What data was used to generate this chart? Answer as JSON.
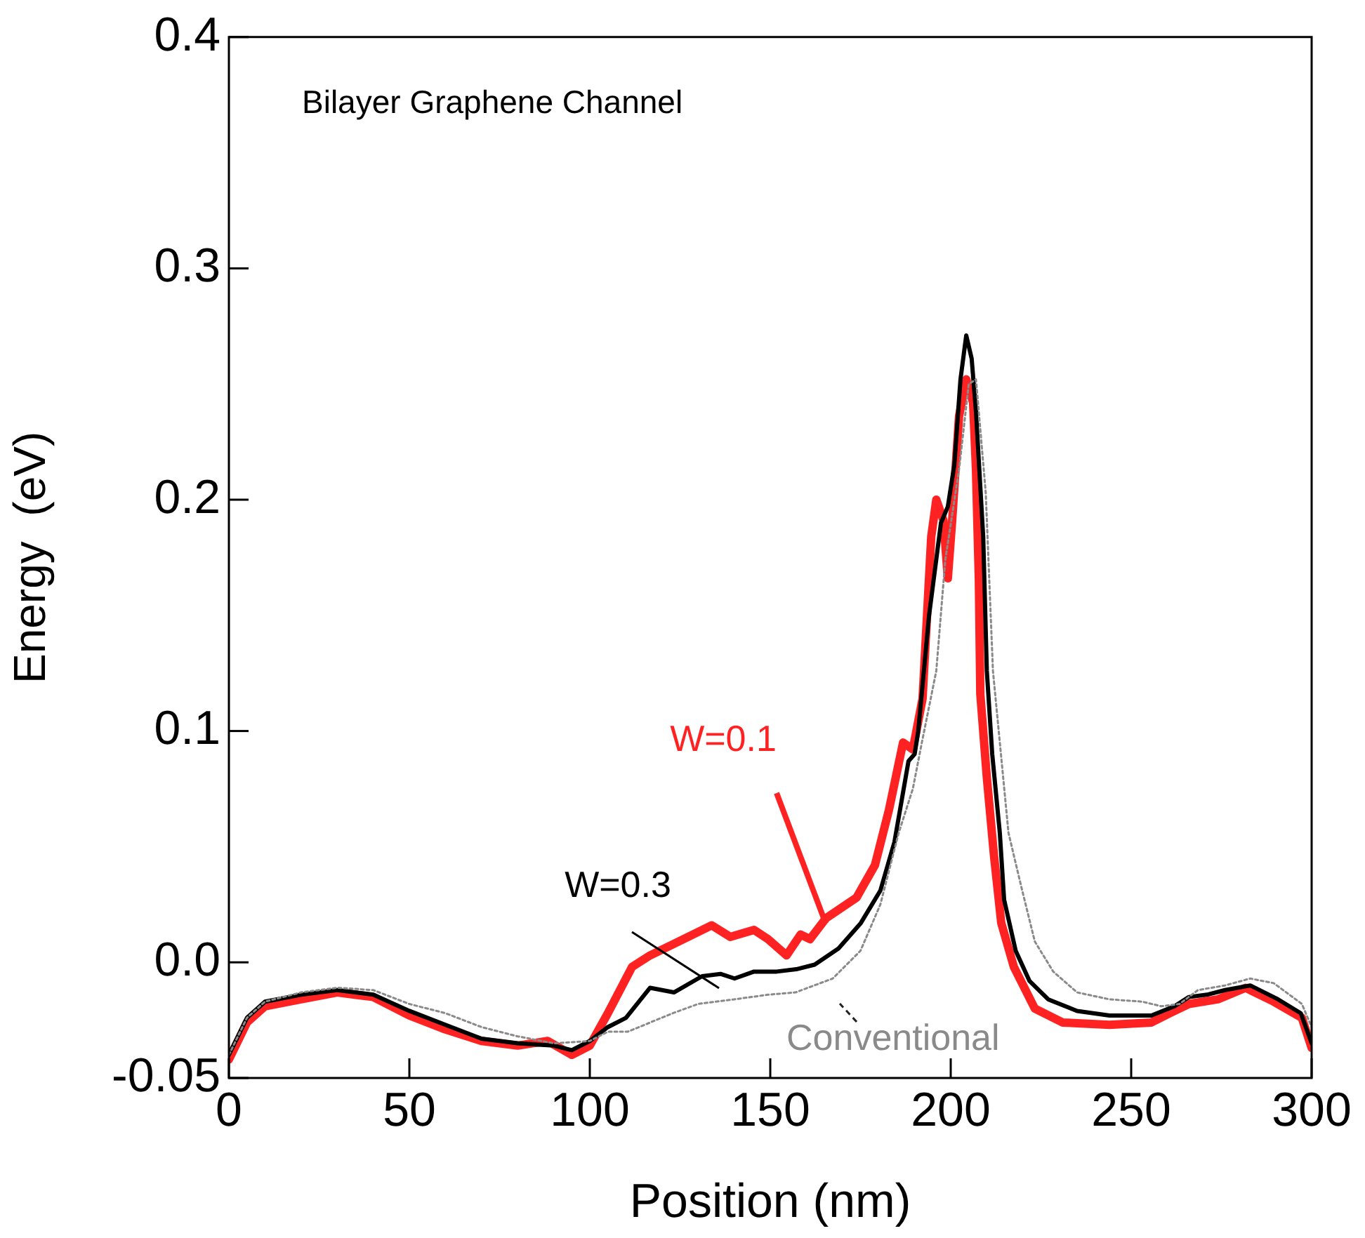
{
  "chart_data": {
    "type": "line",
    "title": "Bilayer Graphene Channel",
    "xlabel": "Position (nm)",
    "ylabel": "Energy  (eV)",
    "xlim": [
      0,
      300
    ],
    "xticks": [
      0,
      50,
      100,
      150,
      200,
      250,
      300
    ],
    "ylim": [
      -0.05,
      0.4
    ],
    "yticks": [
      -0.05,
      {
        "value": 0,
        "label": "0.0"
      },
      0.1,
      0.2,
      0.3,
      0.4
    ],
    "grid": false,
    "legend": false,
    "marker": "none",
    "series": [
      {
        "name": "Conventional",
        "color": "#8a8a8a",
        "line_style": "dotted",
        "x": [
          0,
          5,
          10,
          20,
          30,
          40,
          50,
          60,
          70,
          80,
          90,
          100,
          105,
          110.5,
          123,
          130,
          140,
          149.4,
          157,
          167.3,
          175,
          180.5,
          185.6,
          189.5,
          192,
          196,
          198.5,
          202.3,
          205,
          207,
          209.7,
          211.7,
          216,
          219.5,
          223.3,
          228.4,
          235,
          244,
          253,
          258.4,
          263.4,
          268.5,
          276,
          283,
          289.5,
          297.3,
          300
        ],
        "values": [
          -0.04,
          -0.024,
          -0.017,
          -0.013,
          -0.011,
          -0.012,
          -0.018,
          -0.022,
          -0.028,
          -0.032,
          -0.035,
          -0.034,
          -0.03,
          -0.03,
          -0.022,
          -0.018,
          -0.016,
          -0.014,
          -0.013,
          -0.007,
          0.005,
          0.025,
          0.056,
          0.075,
          0.095,
          0.126,
          0.174,
          0.213,
          0.25,
          0.252,
          0.203,
          0.126,
          0.056,
          0.033,
          0.009,
          -0.004,
          -0.013,
          -0.016,
          -0.017,
          -0.019,
          -0.018,
          -0.012,
          -0.01,
          -0.007,
          -0.009,
          -0.018,
          -0.028
        ]
      },
      {
        "name": "W=0.3",
        "color": "#000000",
        "line_style": "solid",
        "x": [
          0,
          5,
          10,
          20,
          30,
          40,
          50,
          60,
          70,
          80,
          90,
          95,
          100,
          105,
          110,
          116.7,
          123.3,
          131.1,
          136.2,
          140.1,
          145.5,
          151.8,
          157.2,
          162.3,
          168.9,
          175.1,
          180.5,
          184.4,
          188.3,
          190,
          191,
          194,
          197.3,
          199.2,
          201,
          202.7,
          204.3,
          205.8,
          207,
          209,
          210,
          211.5,
          213.6,
          214.8,
          218,
          221.8,
          227,
          235,
          244,
          255.6,
          262,
          266,
          271,
          276,
          283,
          290.7,
          297,
          300
        ],
        "values": [
          -0.04,
          -0.024,
          -0.017,
          -0.014,
          -0.012,
          -0.014,
          -0.021,
          -0.027,
          -0.033,
          -0.035,
          -0.036,
          -0.038,
          -0.034,
          -0.028,
          -0.024,
          -0.011,
          -0.013,
          -0.006,
          -0.005,
          -0.007,
          -0.004,
          -0.004,
          -0.003,
          -0.001,
          0.006,
          0.017,
          0.031,
          0.052,
          0.087,
          0.09,
          0.1,
          0.15,
          0.19,
          0.197,
          0.215,
          0.252,
          0.271,
          0.261,
          0.238,
          0.184,
          0.126,
          0.09,
          0.056,
          0.027,
          0.005,
          -0.008,
          -0.016,
          -0.021,
          -0.023,
          -0.023,
          -0.019,
          -0.015,
          -0.014,
          -0.012,
          -0.01,
          -0.016,
          -0.022,
          -0.035
        ]
      },
      {
        "name": "W=0.1",
        "color": "#ff2222",
        "line_style": "solid",
        "x": [
          0,
          5,
          10,
          20,
          30,
          40,
          50,
          60,
          70,
          80,
          88.3,
          95,
          100,
          105,
          111.7,
          116.7,
          123.3,
          133.8,
          138.9,
          145.5,
          149.4,
          154.5,
          158.4,
          161,
          165.4,
          173.9,
          179,
          182.9,
          186.8,
          189.5,
          192.2,
          194.6,
          196,
          198,
          199.2,
          200.4,
          202.3,
          204.3,
          206.2,
          207,
          207.8,
          208.2,
          210,
          212,
          214,
          217.5,
          223.3,
          231,
          244,
          255.6,
          260.7,
          266,
          274,
          281.7,
          289.5,
          297.3,
          300
        ],
        "values": [
          -0.042,
          -0.026,
          -0.019,
          -0.016,
          -0.013,
          -0.015,
          -0.023,
          -0.029,
          -0.034,
          -0.036,
          -0.034,
          -0.04,
          -0.036,
          -0.022,
          -0.002,
          0.003,
          0.008,
          0.016,
          0.011,
          0.014,
          0.01,
          0.003,
          0.012,
          0.01,
          0.019,
          0.028,
          0.042,
          0.066,
          0.095,
          0.092,
          0.114,
          0.184,
          0.2,
          0.191,
          0.166,
          0.191,
          0.236,
          0.252,
          0.242,
          0.213,
          0.165,
          0.116,
          0.08,
          0.046,
          0.017,
          -0.002,
          -0.02,
          -0.026,
          -0.027,
          -0.026,
          -0.022,
          -0.018,
          -0.016,
          -0.011,
          -0.017,
          -0.024,
          -0.037
        ]
      }
    ]
  }
}
